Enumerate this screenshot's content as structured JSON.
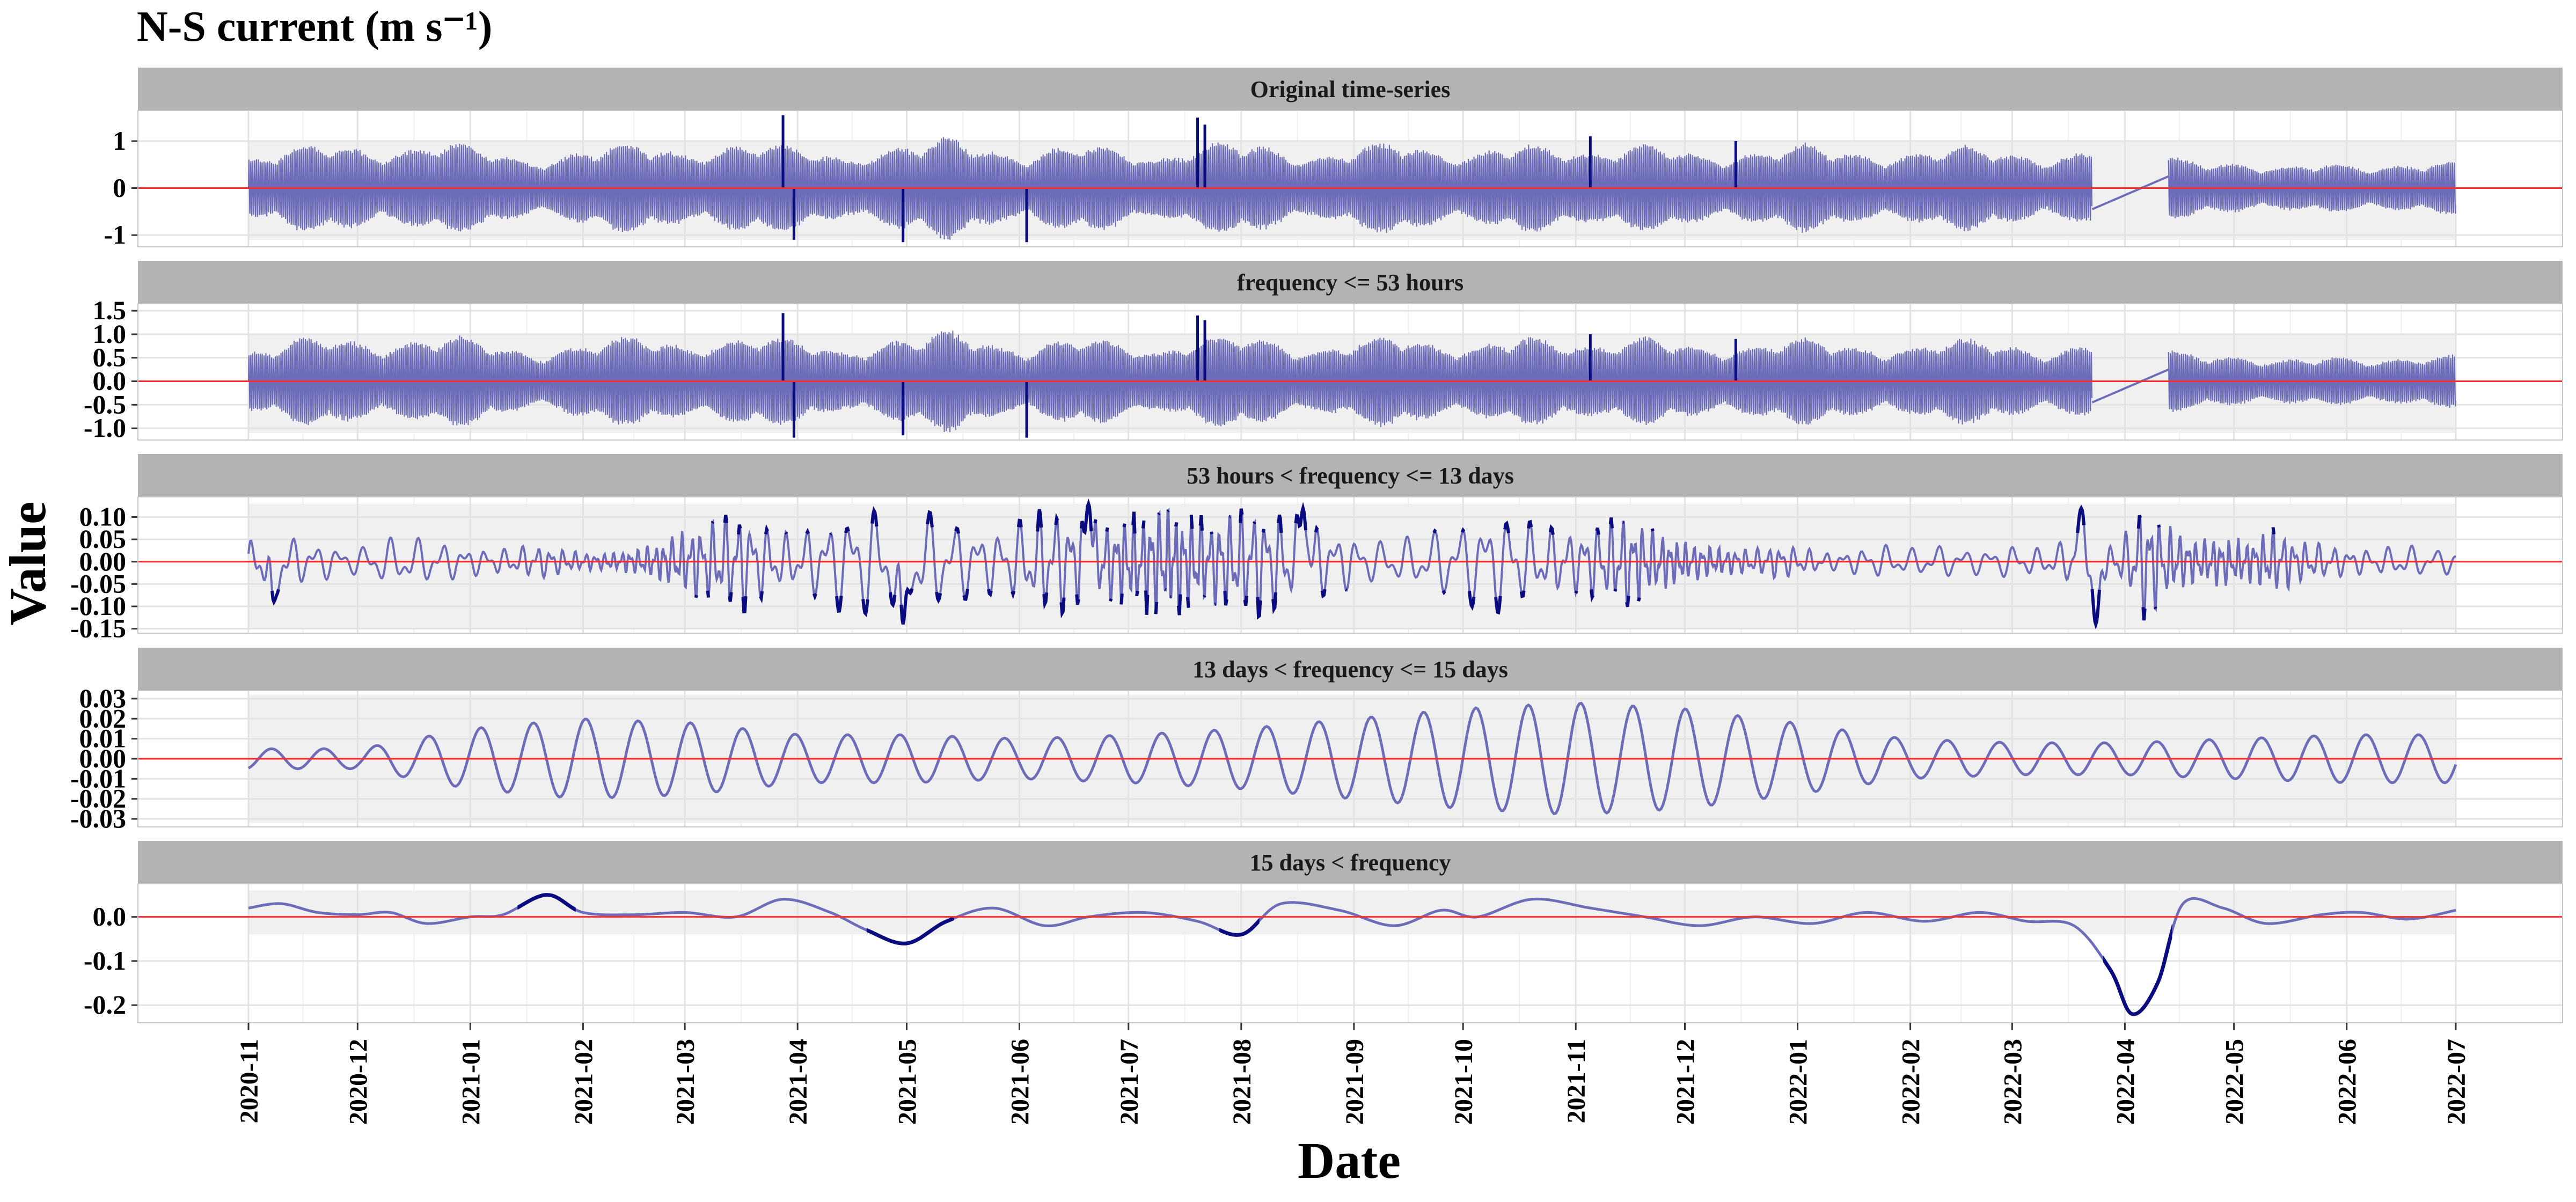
{
  "chart_data": {
    "type": "line",
    "title": "N-S current (m s⁻¹)",
    "xlabel": "Date",
    "ylabel": "Value",
    "x_range": [
      "2020-11-01",
      "2022-07-01"
    ],
    "x_ticks": [
      "2020-11",
      "2020-12",
      "2021-01",
      "2021-02",
      "2021-03",
      "2021-04",
      "2021-05",
      "2021-06",
      "2021-07",
      "2021-08",
      "2021-09",
      "2021-10",
      "2021-11",
      "2021-12",
      "2022-01",
      "2022-02",
      "2022-03",
      "2022-04",
      "2022-05",
      "2022-06",
      "2022-07"
    ],
    "data_gap": [
      "2022-03-23",
      "2022-04-13"
    ],
    "grid": true,
    "legend": "none",
    "colors": {
      "series": "#6c6cb8",
      "peak": "#0b0b80",
      "zero_line": "#ff2a2a",
      "strip": "#b3b3b3",
      "band": "#f0f0f0"
    },
    "panels": [
      {
        "label": "Original time-series",
        "ylim": [
          -1.25,
          1.65
        ],
        "y_ticks": [
          1,
          0,
          -1
        ],
        "y_tick_labels": [
          "1",
          "0",
          "-1"
        ],
        "band": [
          -1.1,
          1.0
        ],
        "kind": "envelope",
        "envelope_by_week": [
          0.62,
          0.75,
          0.95,
          1.0,
          0.88,
          0.72,
          0.8,
          0.95,
          1.0,
          0.9,
          0.7,
          0.55,
          0.65,
          0.82,
          0.95,
          1.0,
          0.85,
          0.7,
          0.82,
          0.95,
          1.0,
          0.92,
          0.78,
          0.6,
          0.72,
          0.9,
          1.0,
          1.15,
          0.95,
          0.72,
          0.66,
          0.86,
          1.0,
          0.92,
          0.75,
          0.6,
          0.8,
          0.95,
          1.05,
          0.92,
          0.74,
          0.62,
          0.76,
          0.92,
          1.05,
          0.9,
          0.72,
          0.7,
          0.85,
          1.0,
          0.92,
          0.78,
          0.75,
          0.9,
          0.98,
          0.86,
          0.7,
          0.65,
          0.76,
          0.9,
          0.98,
          0.86,
          0.72,
          0.65,
          0.72,
          0.85,
          0.95,
          0.88,
          0.74,
          0.6,
          0.7,
          0.82,
          0.9,
          0.85,
          0.7,
          0.6,
          0.55,
          0.5,
          0.45,
          0.5,
          0.55,
          0.5,
          0.45,
          0.5,
          0.55,
          0.58
        ],
        "spikes": [
          {
            "date": "2021-03-28",
            "value": 1.55
          },
          {
            "date": "2021-03-31",
            "value": -1.1
          },
          {
            "date": "2021-04-30",
            "value": -1.15
          },
          {
            "date": "2021-06-03",
            "value": -1.15
          },
          {
            "date": "2021-07-20",
            "value": 1.5
          },
          {
            "date": "2021-07-22",
            "value": 1.35
          },
          {
            "date": "2021-11-05",
            "value": 1.1
          },
          {
            "date": "2021-12-15",
            "value": 1.0
          }
        ]
      },
      {
        "label": "frequency <= 53 hours",
        "ylim": [
          -1.25,
          1.65
        ],
        "y_ticks": [
          1.5,
          1.0,
          0.5,
          0.0,
          -0.5,
          -1.0
        ],
        "y_tick_labels": [
          "1.5",
          "1.0",
          "0.5",
          "0.0",
          "-0.5",
          "-1.0"
        ],
        "band": [
          -1.1,
          1.0
        ],
        "kind": "envelope",
        "envelope_by_week": [
          0.62,
          0.75,
          0.95,
          1.0,
          0.88,
          0.72,
          0.8,
          0.95,
          1.0,
          0.9,
          0.7,
          0.55,
          0.65,
          0.82,
          0.95,
          1.0,
          0.85,
          0.7,
          0.82,
          0.95,
          1.0,
          0.92,
          0.78,
          0.6,
          0.72,
          0.9,
          1.0,
          1.15,
          0.95,
          0.72,
          0.66,
          0.86,
          1.0,
          0.92,
          0.75,
          0.6,
          0.8,
          0.95,
          1.05,
          0.92,
          0.74,
          0.62,
          0.76,
          0.92,
          1.05,
          0.9,
          0.72,
          0.7,
          0.85,
          1.0,
          0.92,
          0.78,
          0.75,
          0.9,
          0.98,
          0.86,
          0.7,
          0.65,
          0.76,
          0.9,
          0.98,
          0.86,
          0.72,
          0.65,
          0.72,
          0.85,
          0.95,
          0.88,
          0.74,
          0.6,
          0.7,
          0.82,
          0.9,
          0.85,
          0.7,
          0.6,
          0.55,
          0.5,
          0.45,
          0.5,
          0.55,
          0.5,
          0.45,
          0.5,
          0.55,
          0.58
        ],
        "spikes": [
          {
            "date": "2021-03-28",
            "value": 1.45
          },
          {
            "date": "2021-03-31",
            "value": -1.2
          },
          {
            "date": "2021-04-30",
            "value": -1.15
          },
          {
            "date": "2021-06-03",
            "value": -1.2
          },
          {
            "date": "2021-07-20",
            "value": 1.4
          },
          {
            "date": "2021-07-22",
            "value": 1.3
          },
          {
            "date": "2021-11-05",
            "value": 1.0
          },
          {
            "date": "2021-12-15",
            "value": 0.9
          }
        ]
      },
      {
        "label": "53 hours < frequency <= 13 days",
        "ylim": [
          -0.16,
          0.145
        ],
        "y_ticks": [
          0.1,
          0.05,
          0.0,
          -0.05,
          -0.1,
          -0.15
        ],
        "y_tick_labels": [
          "0.10",
          "0.05",
          "0.00",
          "-0.05",
          "-0.10",
          "-0.15"
        ],
        "band": [
          -0.15,
          0.13
        ],
        "kind": "wiggle",
        "peak_threshold": 0.06,
        "amplitude_by_week": [
          0.05,
          0.08,
          0.05,
          0.04,
          0.03,
          0.05,
          0.06,
          0.05,
          0.04,
          0.03,
          0.03,
          0.04,
          0.03,
          0.02,
          0.02,
          0.03,
          0.05,
          0.08,
          0.1,
          0.12,
          0.08,
          0.06,
          0.09,
          0.12,
          0.13,
          0.14,
          0.12,
          0.1,
          0.08,
          0.07,
          0.11,
          0.13,
          0.1,
          0.09,
          0.11,
          0.13,
          0.12,
          0.1,
          0.12,
          0.13,
          0.11,
          0.09,
          0.07,
          0.05,
          0.05,
          0.06,
          0.08,
          0.1,
          0.12,
          0.1,
          0.08,
          0.07,
          0.09,
          0.11,
          0.08,
          0.05,
          0.04,
          0.03,
          0.03,
          0.04,
          0.03,
          0.02,
          0.03,
          0.04,
          0.03,
          0.04,
          0.03,
          0.03,
          0.04,
          0.03,
          0.05,
          0.04,
          0.04,
          0.14,
          0.08,
          0.05,
          0.06,
          0.05,
          0.08,
          0.05,
          0.04,
          0.03,
          0.03,
          0.04,
          0.03,
          0.03
        ],
        "extremes": [
          {
            "date": "2022-03-20",
            "value": 0.12
          },
          {
            "date": "2022-03-24",
            "value": -0.14
          },
          {
            "date": "2021-04-30",
            "value": -0.14
          },
          {
            "date": "2021-06-20",
            "value": 0.13
          },
          {
            "date": "2021-08-18",
            "value": 0.12
          },
          {
            "date": "2020-11-08",
            "value": -0.09
          }
        ]
      },
      {
        "label": "13 days < frequency <= 15 days",
        "ylim": [
          -0.034,
          0.034
        ],
        "y_ticks": [
          0.03,
          0.02,
          0.01,
          0.0,
          -0.01,
          -0.02,
          -0.03
        ],
        "y_tick_labels": [
          "0.03",
          "0.02",
          "0.01",
          "0.00",
          "-0.01",
          "-0.02",
          "-0.03"
        ],
        "band": [
          -0.032,
          0.032
        ],
        "kind": "sinusoid",
        "period_days": 14.4,
        "amplitude_by_month": [
          0.005,
          0.005,
          0.015,
          0.02,
          0.018,
          0.012,
          0.012,
          0.01,
          0.012,
          0.015,
          0.02,
          0.025,
          0.028,
          0.025,
          0.018,
          0.01,
          0.008,
          0.008,
          0.01,
          0.012,
          0.012
        ]
      },
      {
        "label": "15 days < frequency",
        "ylim": [
          -0.24,
          0.075
        ],
        "y_ticks": [
          0.0,
          -0.1,
          -0.2
        ],
        "y_tick_labels": [
          "0.0",
          "-0.1",
          "-0.2"
        ],
        "band": [
          -0.04,
          0.06
        ],
        "kind": "smooth",
        "points": [
          [
            "2020-11-01",
            0.02
          ],
          [
            "2020-11-10",
            0.03
          ],
          [
            "2020-11-20",
            0.01
          ],
          [
            "2020-12-01",
            0.005
          ],
          [
            "2020-12-10",
            0.01
          ],
          [
            "2020-12-20",
            -0.015
          ],
          [
            "2021-01-01",
            0.0
          ],
          [
            "2021-01-10",
            0.005
          ],
          [
            "2021-01-22",
            0.05
          ],
          [
            "2021-02-01",
            0.01
          ],
          [
            "2021-02-15",
            0.005
          ],
          [
            "2021-03-01",
            0.01
          ],
          [
            "2021-03-15",
            0.0
          ],
          [
            "2021-03-28",
            0.04
          ],
          [
            "2021-04-10",
            0.01
          ],
          [
            "2021-04-20",
            -0.03
          ],
          [
            "2021-05-01",
            -0.06
          ],
          [
            "2021-05-12",
            -0.01
          ],
          [
            "2021-05-25",
            0.02
          ],
          [
            "2021-06-08",
            -0.02
          ],
          [
            "2021-06-20",
            0.0
          ],
          [
            "2021-07-05",
            0.01
          ],
          [
            "2021-07-20",
            -0.01
          ],
          [
            "2021-08-01",
            -0.04
          ],
          [
            "2021-08-12",
            0.03
          ],
          [
            "2021-08-28",
            0.015
          ],
          [
            "2021-09-12",
            -0.02
          ],
          [
            "2021-09-25",
            0.015
          ],
          [
            "2021-10-05",
            0.0
          ],
          [
            "2021-10-20",
            0.04
          ],
          [
            "2021-11-05",
            0.02
          ],
          [
            "2021-11-20",
            0.0
          ],
          [
            "2021-12-05",
            -0.02
          ],
          [
            "2021-12-20",
            0.0
          ],
          [
            "2022-01-05",
            -0.015
          ],
          [
            "2022-01-20",
            0.01
          ],
          [
            "2022-02-05",
            -0.01
          ],
          [
            "2022-02-20",
            0.01
          ],
          [
            "2022-03-05",
            -0.01
          ],
          [
            "2022-03-18",
            -0.02
          ],
          [
            "2022-03-28",
            -0.12
          ],
          [
            "2022-04-03",
            -0.22
          ],
          [
            "2022-04-10",
            -0.15
          ],
          [
            "2022-04-17",
            0.03
          ],
          [
            "2022-04-28",
            0.02
          ],
          [
            "2022-05-10",
            -0.015
          ],
          [
            "2022-05-25",
            0.005
          ],
          [
            "2022-06-05",
            0.01
          ],
          [
            "2022-06-18",
            -0.005
          ],
          [
            "2022-07-01",
            0.015
          ]
        ]
      }
    ]
  }
}
